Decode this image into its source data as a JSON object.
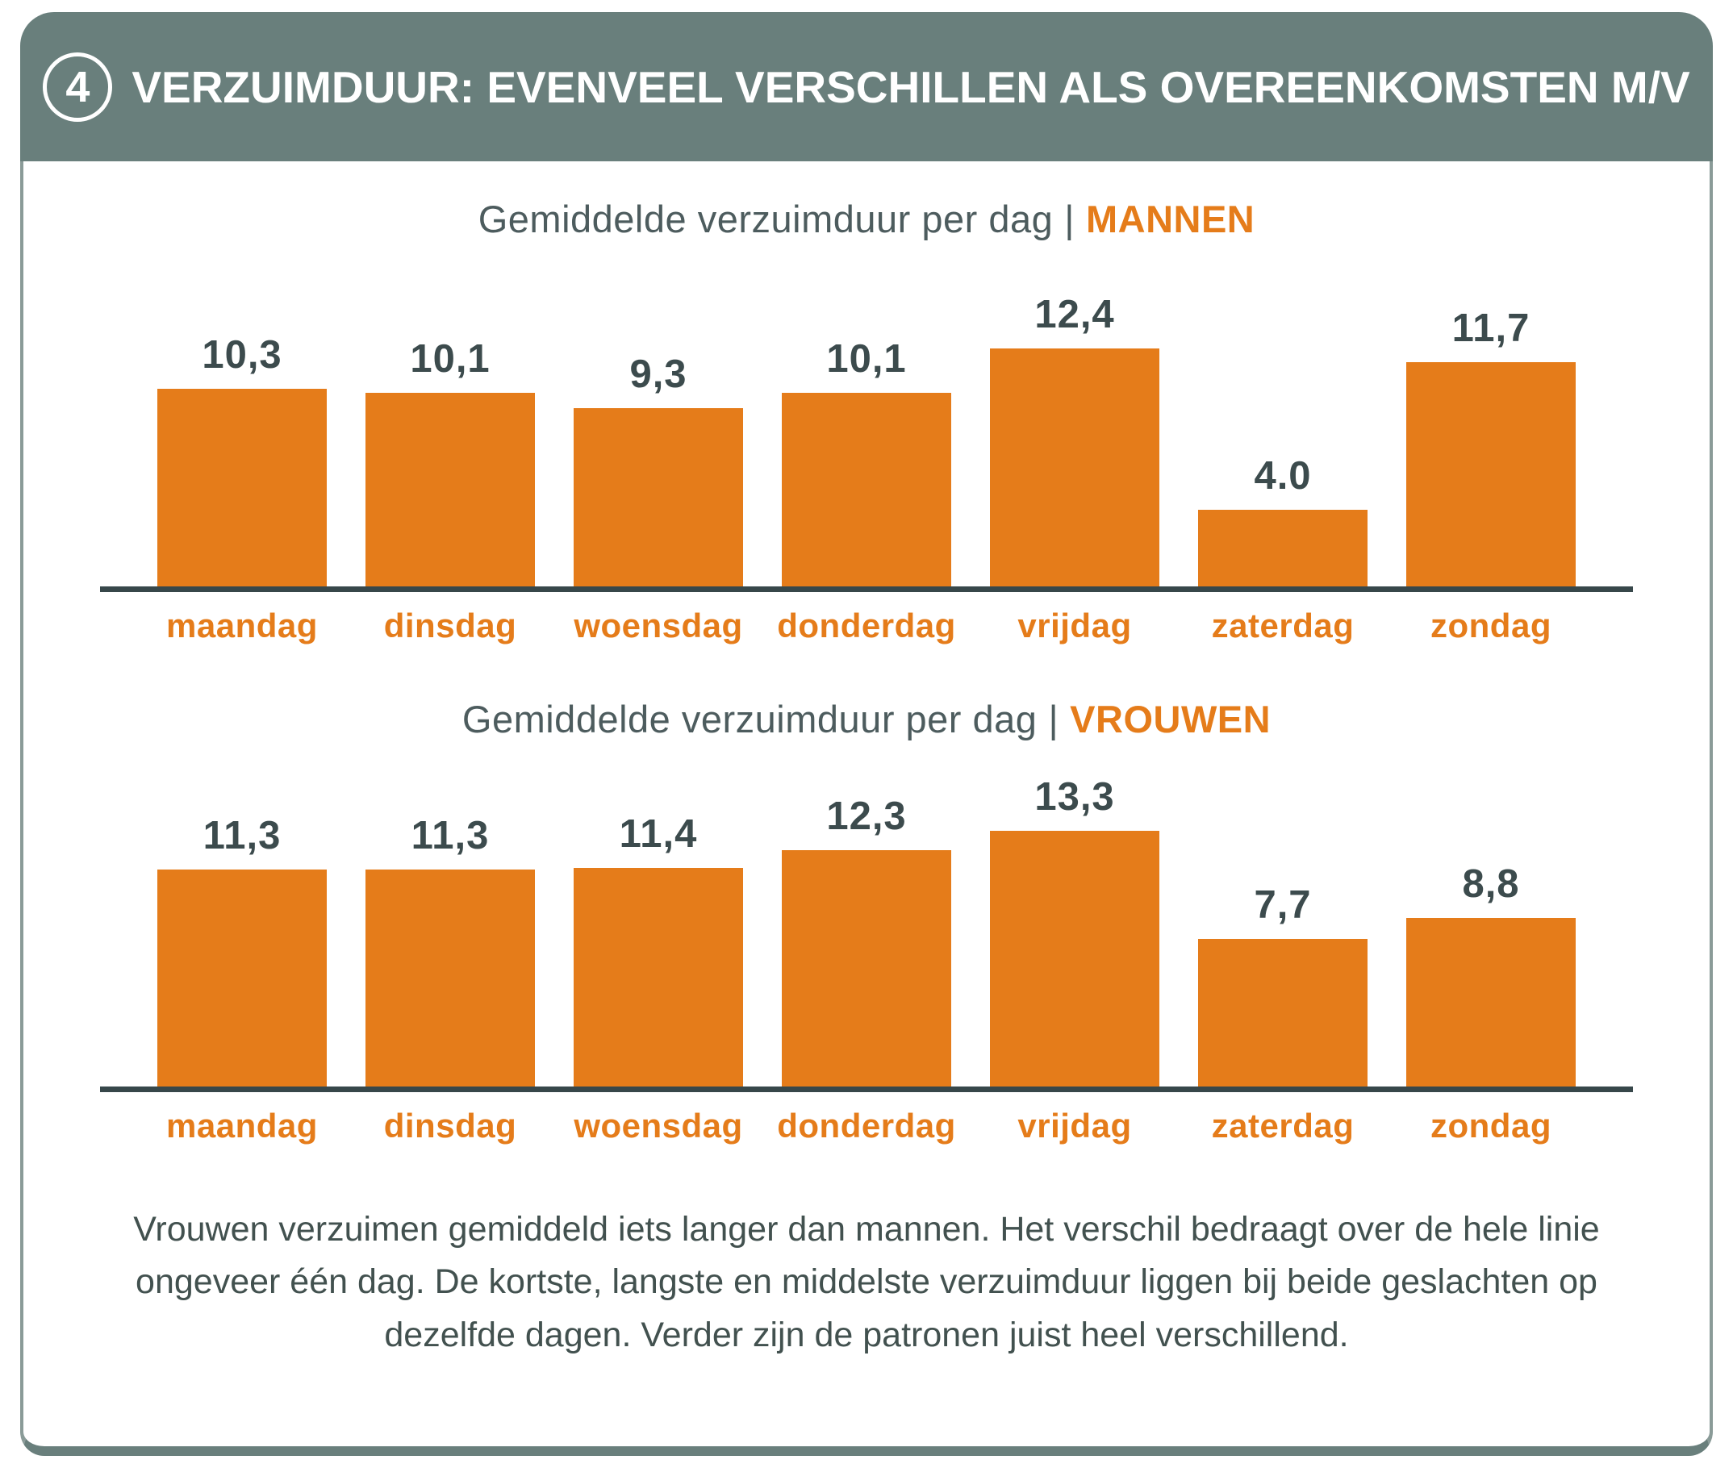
{
  "header": {
    "number": "4",
    "title": "VERZUIMDUUR: EVENVEEL VERSCHILLEN ALS OVEREENKOMSTEN M/V"
  },
  "chart_data": [
    {
      "type": "bar",
      "title": "Gemiddelde verzuimduur per dag | MANNEN",
      "title_prefix": "Gemiddelde verzuimduur per dag",
      "separator": "|",
      "title_highlight": "MANNEN",
      "categories": [
        "maandag",
        "dinsdag",
        "woensdag",
        "donderdag",
        "vrijdag",
        "zaterdag",
        "zondag"
      ],
      "values": [
        10.3,
        10.1,
        9.3,
        10.1,
        12.4,
        4.0,
        11.7
      ],
      "value_labels": [
        "10,3",
        "10,1",
        "9,3",
        "10,1",
        "12,4",
        "4.0",
        "11,7"
      ],
      "ylim": [
        0,
        14
      ],
      "grid": false,
      "legend": "none",
      "bar_color": "#E57C1A"
    },
    {
      "type": "bar",
      "title": "Gemiddelde verzuimduur per dag | VROUWEN",
      "title_prefix": "Gemiddelde verzuimduur per dag",
      "separator": "|",
      "title_highlight": "VROUWEN",
      "categories": [
        "maandag",
        "dinsdag",
        "woensdag",
        "donderdag",
        "vrijdag",
        "zaterdag",
        "zondag"
      ],
      "values": [
        11.3,
        11.3,
        11.4,
        12.3,
        13.3,
        7.7,
        8.8
      ],
      "value_labels": [
        "11,3",
        "11,3",
        "11,4",
        "12,3",
        "13,3",
        "7,7",
        "8,8"
      ],
      "ylim": [
        0,
        14
      ],
      "grid": false,
      "legend": "none",
      "bar_color": "#E57C1A"
    }
  ],
  "footer": {
    "text": "Vrouwen verzuimen gemiddeld iets langer dan mannen. Het verschil bedraagt over de hele linie ongeveer één dag. De kortste, langste en middelste verzuimduur liggen bij beide geslachten op dezelfde dagen. Verder zijn de patronen juist heel verschillend."
  },
  "colors": {
    "orange": "#E57C1A",
    "header_bg": "#697F7C",
    "dark_text": "#3C4B4D",
    "axis": "#37474A"
  }
}
